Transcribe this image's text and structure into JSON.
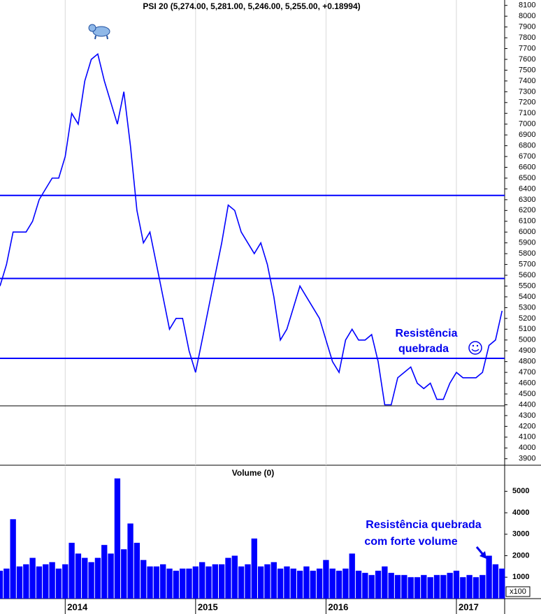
{
  "chart_data": [
    {
      "type": "line",
      "title": "PSI 20 (5,274.00, 5,281.00, 5,246.00, 5,255.00, +0.18994)",
      "x": [
        2013.5,
        2013.55,
        2013.6,
        2013.65,
        2013.7,
        2013.75,
        2013.8,
        2013.85,
        2013.9,
        2013.95,
        2014.0,
        2014.05,
        2014.1,
        2014.15,
        2014.2,
        2014.25,
        2014.3,
        2014.35,
        2014.4,
        2014.45,
        2014.5,
        2014.55,
        2014.6,
        2014.65,
        2014.7,
        2014.75,
        2014.8,
        2014.85,
        2014.9,
        2014.95,
        2015.0,
        2015.05,
        2015.1,
        2015.15,
        2015.2,
        2015.25,
        2015.3,
        2015.35,
        2015.4,
        2015.45,
        2015.5,
        2015.55,
        2015.6,
        2015.65,
        2015.7,
        2015.75,
        2015.8,
        2015.85,
        2015.9,
        2015.95,
        2016.0,
        2016.05,
        2016.1,
        2016.15,
        2016.2,
        2016.25,
        2016.3,
        2016.35,
        2016.4,
        2016.45,
        2016.5,
        2016.55,
        2016.6,
        2016.65,
        2016.7,
        2016.75,
        2016.8,
        2016.85,
        2016.9,
        2016.95,
        2017.0,
        2017.05,
        2017.1,
        2017.15,
        2017.2,
        2017.25,
        2017.3,
        2017.35
      ],
      "values": [
        5500,
        5700,
        6000,
        6000,
        6000,
        6100,
        6300,
        6400,
        6500,
        6500,
        6700,
        7100,
        7000,
        7400,
        7600,
        7650,
        7400,
        7200,
        7000,
        7300,
        6800,
        6200,
        5900,
        6000,
        5700,
        5400,
        5100,
        5200,
        5200,
        4900,
        4700,
        5000,
        5300,
        5600,
        5900,
        6250,
        6200,
        6000,
        5900,
        5800,
        5900,
        5700,
        5400,
        5000,
        5100,
        5300,
        5500,
        5400,
        5300,
        5200,
        5000,
        4800,
        4700,
        5000,
        5100,
        5000,
        5000,
        5050,
        4800,
        4400,
        4400,
        4650,
        4700,
        4750,
        4600,
        4550,
        4600,
        4450,
        4450,
        4600,
        4700,
        4650,
        4650,
        4650,
        4700,
        4950,
        5000,
        5270
      ],
      "color": "#0000ff",
      "xlim": [
        2013.5,
        2017.37
      ],
      "xticks": [
        2014,
        2015,
        2016,
        2017
      ],
      "ylim": [
        3840,
        8150
      ],
      "yticks": [
        3900,
        4000,
        4100,
        4200,
        4300,
        4400,
        4500,
        4600,
        4700,
        4800,
        4900,
        5000,
        5100,
        5200,
        5300,
        5400,
        5500,
        5600,
        5700,
        5800,
        5900,
        6000,
        6100,
        6200,
        6300,
        6400,
        6500,
        6600,
        6700,
        6800,
        6900,
        7000,
        7100,
        7200,
        7300,
        7400,
        7500,
        7600,
        7700,
        7800,
        7900,
        8000,
        8100
      ],
      "hlines": [
        {
          "value": 6340,
          "color": "#0000ff"
        },
        {
          "value": 5570,
          "color": "#0000ff"
        },
        {
          "value": 4830,
          "color": "#0000ff"
        },
        {
          "value": 4390,
          "color": "#000000"
        }
      ],
      "annotations": [
        {
          "lines": [
            "Resistência",
            "quebrada"
          ]
        }
      ]
    },
    {
      "type": "bar",
      "title": "Volume (0)",
      "x": [
        2013.5,
        2013.55,
        2013.6,
        2013.65,
        2013.7,
        2013.75,
        2013.8,
        2013.85,
        2013.9,
        2013.95,
        2014.0,
        2014.05,
        2014.1,
        2014.15,
        2014.2,
        2014.25,
        2014.3,
        2014.35,
        2014.4,
        2014.45,
        2014.5,
        2014.55,
        2014.6,
        2014.65,
        2014.7,
        2014.75,
        2014.8,
        2014.85,
        2014.9,
        2014.95,
        2015.0,
        2015.05,
        2015.1,
        2015.15,
        2015.2,
        2015.25,
        2015.3,
        2015.35,
        2015.4,
        2015.45,
        2015.5,
        2015.55,
        2015.6,
        2015.65,
        2015.7,
        2015.75,
        2015.8,
        2015.85,
        2015.9,
        2015.95,
        2016.0,
        2016.05,
        2016.1,
        2016.15,
        2016.2,
        2016.25,
        2016.3,
        2016.35,
        2016.4,
        2016.45,
        2016.5,
        2016.55,
        2016.6,
        2016.65,
        2016.7,
        2016.75,
        2016.8,
        2016.85,
        2016.9,
        2016.95,
        2017.0,
        2017.05,
        2017.1,
        2017.15,
        2017.2,
        2017.25,
        2017.3,
        2017.35
      ],
      "values": [
        1300,
        1400,
        3700,
        1500,
        1600,
        1900,
        1500,
        1600,
        1700,
        1400,
        1600,
        2600,
        2100,
        1900,
        1700,
        1900,
        2500,
        2100,
        5600,
        2300,
        3500,
        2600,
        1800,
        1500,
        1500,
        1600,
        1400,
        1300,
        1400,
        1400,
        1500,
        1700,
        1500,
        1600,
        1600,
        1900,
        2000,
        1500,
        1600,
        2800,
        1500,
        1600,
        1700,
        1400,
        1500,
        1400,
        1300,
        1500,
        1300,
        1400,
        1800,
        1400,
        1300,
        1400,
        2100,
        1300,
        1200,
        1100,
        1300,
        1500,
        1200,
        1100,
        1100,
        1000,
        1000,
        1100,
        1000,
        1100,
        1100,
        1200,
        1300,
        1000,
        1100,
        1000,
        1100,
        2000,
        1600,
        1400
      ],
      "color": "#0000ff",
      "xlim": [
        2013.5,
        2017.37
      ],
      "xticks": [
        2014,
        2015,
        2016,
        2017
      ],
      "ylim": [
        0,
        6150
      ],
      "yticks": [
        1000,
        2000,
        3000,
        4000,
        5000
      ],
      "y_unit_label": "x100",
      "annotations": [
        {
          "lines": [
            "Resistência quebrada",
            "com forte volume"
          ]
        }
      ]
    }
  ]
}
